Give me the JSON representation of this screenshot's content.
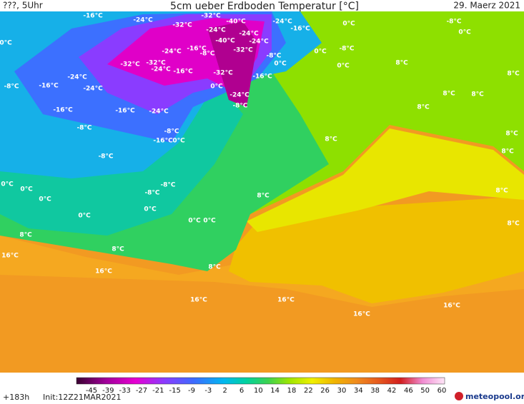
{
  "header": {
    "run": "???, 5Uhr",
    "title": "5cm ueber Erdboden Temperatur [°C]",
    "date": "29. Maerz 2021"
  },
  "map": {
    "contour_labels": [
      "-16°C",
      "-24°C",
      "-32°C",
      "-32°C",
      "-24°C",
      "-40°C",
      "-24°C",
      "-24°C",
      "-16°C",
      "0°C",
      "-8°C",
      "0°C",
      "0°C",
      "-24°C",
      "-16°C",
      "-8°C",
      "-40°C",
      "-24°C",
      "-32°C",
      "-8°C",
      "0°C",
      "0°C",
      "-8°C",
      "0°C",
      "8°C",
      "8°C",
      "-32°C",
      "-32°C",
      "-24°C",
      "-16°C",
      "-32°C",
      "-16°C",
      "-24°C",
      "-24°C",
      "-16°C",
      "-8°C",
      "0°C",
      "-24°C",
      "-8°C",
      "8°C",
      "8°C",
      "8°C",
      "-16°C",
      "-16°C",
      "-24°C",
      "-8°C",
      "-8°C",
      "8°C",
      "-16°C",
      "0°C",
      "8°C",
      "8°C",
      "-8°C",
      "-8°C",
      "0°C",
      "0°C",
      "-8°C",
      "0°C",
      "8°C",
      "8°C",
      "0°C",
      "0°C",
      "0°C",
      "0°C",
      "8°C",
      "8°C",
      "8°C",
      "16°C",
      "16°C",
      "8°C",
      "16°C",
      "16°C",
      "16°C",
      "16°C"
    ]
  },
  "colorbar": {
    "labels": [
      "-45",
      "-39",
      "-33",
      "-27",
      "-21",
      "-15",
      "-9",
      "-3",
      "2",
      "6",
      "10",
      "14",
      "18",
      "22",
      "26",
      "30",
      "34",
      "38",
      "42",
      "46",
      "50",
      "60"
    ]
  },
  "footer": {
    "forecast": "+183h",
    "init": "Init:12Z21MAR2021",
    "logo": "meteopool.org"
  }
}
